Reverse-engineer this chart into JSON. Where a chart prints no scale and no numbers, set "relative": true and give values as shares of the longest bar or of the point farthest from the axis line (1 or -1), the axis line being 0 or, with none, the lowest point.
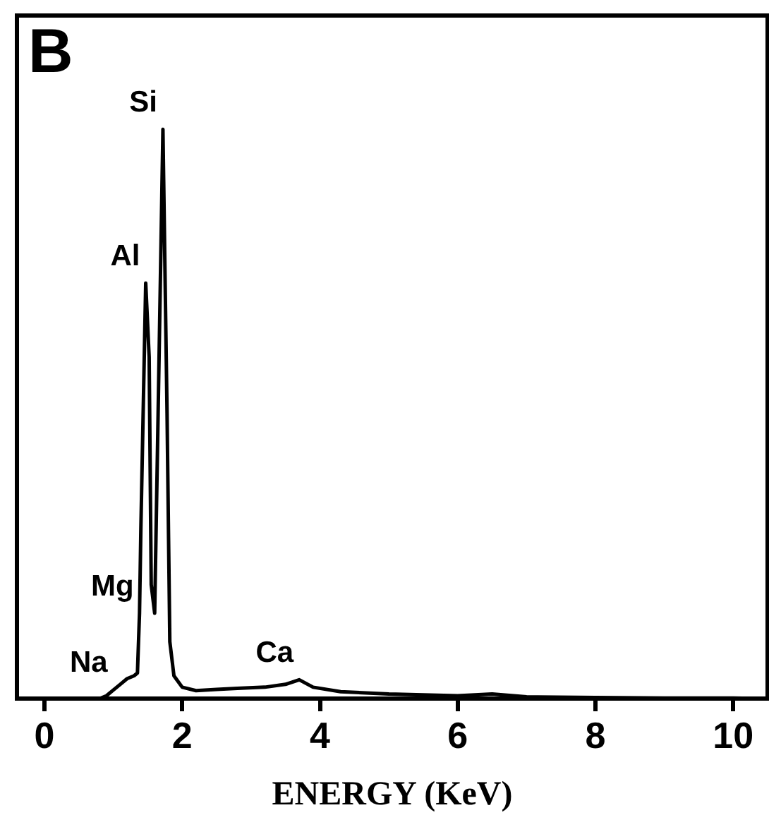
{
  "chart_data": {
    "type": "line",
    "relative": true,
    "xlabel": "ENERGY (KeV)",
    "xlim": [
      -0.4,
      10.5
    ],
    "xticks": [
      0,
      2,
      4,
      6,
      8,
      10
    ],
    "x": [
      0.8,
      0.9,
      1.0,
      1.1,
      1.2,
      1.3,
      1.35,
      1.38,
      1.4,
      1.47,
      1.52,
      1.55,
      1.6,
      1.65,
      1.72,
      1.78,
      1.82,
      1.88,
      2.0,
      2.2,
      2.5,
      2.8,
      3.2,
      3.5,
      3.7,
      3.9,
      4.3,
      5.0,
      6.0,
      6.5,
      7.0,
      8.0,
      9.0,
      10.0,
      10.4
    ],
    "series": [
      {
        "color": "#000000",
        "values": [
          0,
          0.005,
          0.015,
          0.025,
          0.035,
          0.04,
          0.045,
          0.15,
          0.3,
          0.73,
          0.6,
          0.2,
          0.15,
          0.5,
          1,
          0.5,
          0.1,
          0.04,
          0.02,
          0.014,
          0.016,
          0.018,
          0.02,
          0.025,
          0.033,
          0.02,
          0.012,
          0.008,
          0.005,
          0.008,
          0.003,
          0.002,
          0.001,
          0.001,
          0
        ]
      }
    ],
    "marker": "none",
    "line_style": "solid",
    "legend": false,
    "annotations": [
      "B",
      {
        "text": "Si",
        "x": 1.72,
        "y": 1
      },
      {
        "text": "Al",
        "x": 1.47,
        "y": 0.73
      },
      {
        "text": "Mg",
        "x": 1.38,
        "y": 0.15
      },
      {
        "text": "Na",
        "x": 1.0,
        "y": 0.015
      },
      {
        "text": "Ca",
        "x": 3.7,
        "y": 0.033
      }
    ]
  }
}
